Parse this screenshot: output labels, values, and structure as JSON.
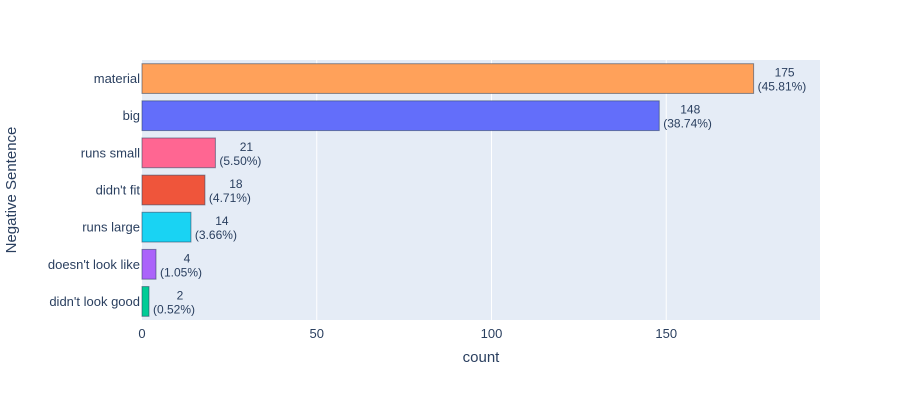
{
  "chart_data": {
    "type": "bar",
    "orientation": "horizontal",
    "categories": [
      "material",
      "big",
      "runs small",
      "didn't fit",
      "runs large",
      "doesn't look like",
      "didn't look good"
    ],
    "values": [
      175,
      148,
      21,
      18,
      14,
      4,
      2
    ],
    "labels": [
      "175\n(45.81%)",
      "148\n(38.74%)",
      "21\n(5.50%)",
      "18\n(4.71%)",
      "14\n(3.66%)",
      "4\n(1.05%)",
      "2\n(0.52%)"
    ],
    "colors": [
      "#FFA15A",
      "#636EFA",
      "#FF6692",
      "#EF553B",
      "#19D3F3",
      "#AB63FA",
      "#00CC96"
    ],
    "xlabel": "count",
    "ylabel": "Negative Sentence",
    "xlim": [
      0,
      194
    ],
    "xticks": [
      0,
      50,
      100,
      150
    ],
    "grid": true,
    "plot_background": "#E5ECF6"
  }
}
